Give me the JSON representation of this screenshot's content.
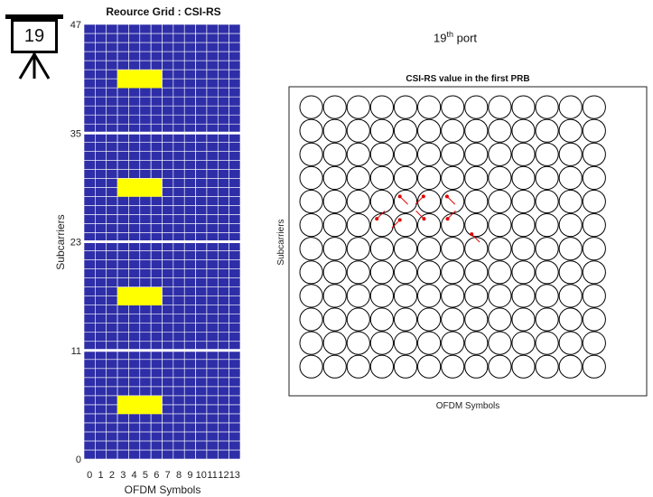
{
  "slide_number": "19",
  "port_title": {
    "number": "19",
    "suffix": "th",
    "word": "port"
  },
  "chart_data": [
    {
      "type": "heatmap",
      "title": "Reource Grid : CSI-RS",
      "xlabel": "OFDM Symbols",
      "ylabel": "Subcarriers",
      "x_ticks": [
        "0",
        "1",
        "2",
        "3",
        "4",
        "5",
        "6",
        "7",
        "8",
        "9",
        "10",
        "11",
        "12",
        "13"
      ],
      "y_ticks": [
        "0",
        "11",
        "23",
        "35",
        "47"
      ],
      "n_symbols": 14,
      "n_subcarriers": 48,
      "prb_boundaries_after_subcarrier": [
        11,
        23,
        35
      ],
      "highlight_symbols": [
        3,
        6
      ],
      "highlight_subcarriers_per_prb": [
        5,
        6
      ],
      "n_prb": 4,
      "colors": {
        "background": "#2e2ea8",
        "grid": "#ffffff",
        "csi_rs": "#ffff00"
      }
    },
    {
      "type": "scatter",
      "title": "CSI-RS value in the first PRB",
      "xlabel": "OFDM Symbols",
      "ylabel": "Subcarriers",
      "grid_columns": 14,
      "grid_rows": 12,
      "symbols": [
        {
          "row": 4,
          "col": 4,
          "dot": [
            -0.5,
            -0.45
          ],
          "dir": [
            0.5,
            0.5
          ]
        },
        {
          "row": 4,
          "col": 5,
          "dot": [
            -0.5,
            -0.45
          ],
          "dir": [
            -0.5,
            0.5
          ]
        },
        {
          "row": 4,
          "col": 6,
          "dot": [
            -0.5,
            -0.45
          ],
          "dir": [
            0.5,
            0.5
          ]
        },
        {
          "row": 5,
          "col": 3,
          "dot": [
            -0.45,
            -0.55
          ],
          "dir": [
            0.5,
            -0.5
          ]
        },
        {
          "row": 5,
          "col": 4,
          "dot": [
            -0.5,
            -0.45
          ],
          "dir": [
            -0.5,
            0.5
          ]
        },
        {
          "row": 5,
          "col": 5,
          "dot": [
            -0.45,
            -0.55
          ],
          "dir": [
            -0.5,
            -0.5
          ]
        },
        {
          "row": 5,
          "col": 6,
          "dot": [
            -0.45,
            -0.55
          ],
          "dir": [
            0.5,
            -0.5
          ]
        },
        {
          "row": 5,
          "col": 7,
          "dot": [
            -0.4,
            0.8
          ],
          "dir": [
            0.5,
            0.5
          ]
        }
      ],
      "colors": {
        "marker": "#e00000",
        "circle": "#000000"
      }
    }
  ]
}
